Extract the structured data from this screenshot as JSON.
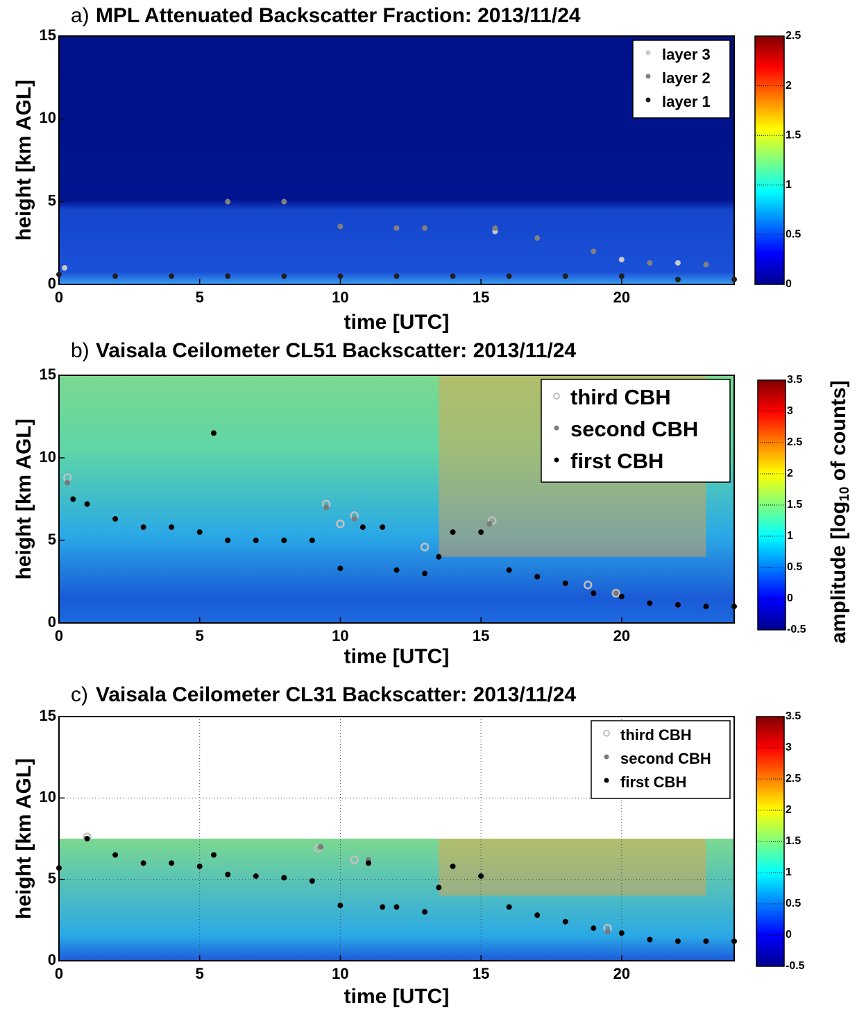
{
  "chart_data": [
    {
      "type": "heatmap",
      "panel": "a)",
      "title": "MPL Attenuated Backscatter Fraction: 2013/11/24",
      "xlabel": "time [UTC]",
      "ylabel": "height [km AGL]",
      "xlim": [
        0,
        24
      ],
      "xticks": [
        0,
        5,
        10,
        15,
        20
      ],
      "ylim": [
        0,
        15
      ],
      "yticks": [
        0,
        5,
        10,
        15
      ],
      "clim": [
        0,
        2.5
      ],
      "cticks": [
        0,
        0.5,
        1,
        1.5,
        2,
        2.5
      ],
      "grid": false,
      "legend": "upper right",
      "series": [
        {
          "name": "layer 3",
          "color": "#c8c8c8",
          "x": [
            0.2,
            15.5,
            20,
            22
          ],
          "values": [
            1,
            3.2,
            1.5,
            1.3
          ]
        },
        {
          "name": "layer 2",
          "color": "#808080",
          "x": [
            6,
            8,
            10,
            12,
            13,
            15.5,
            17,
            19,
            21,
            23
          ],
          "values": [
            5,
            5,
            3.5,
            3.4,
            3.4,
            3.4,
            2.8,
            2,
            1.3,
            1.2
          ]
        },
        {
          "name": "layer 1",
          "color": "#202020",
          "x": [
            0,
            2,
            4,
            6,
            8,
            10,
            12,
            14,
            16,
            18,
            20,
            22,
            24
          ],
          "values": [
            0.6,
            0.5,
            0.5,
            0.5,
            0.5,
            0.5,
            0.5,
            0.5,
            0.5,
            0.5,
            0.5,
            0.3,
            0.3
          ]
        }
      ]
    },
    {
      "type": "heatmap",
      "panel": "b)",
      "title": "Vaisala Ceilometer CL51 Backscatter: 2013/11/24",
      "xlabel": "time [UTC]",
      "ylabel": "height [km AGL]",
      "xlim": [
        0,
        24
      ],
      "xticks": [
        0,
        5,
        10,
        15,
        20
      ],
      "ylim": [
        0,
        15
      ],
      "yticks": [
        0,
        5,
        10,
        15
      ],
      "clim": [
        -0.5,
        3.5
      ],
      "cticks": [
        -0.5,
        0,
        0.5,
        1,
        1.5,
        2,
        2.5,
        3,
        3.5
      ],
      "grid": false,
      "legend": "upper right",
      "colorbar_label": {
        "prefix": "amplitude [log",
        "subscript": "10",
        "suffix": " of counts]"
      },
      "series": [
        {
          "name": "third CBH",
          "color": "#c0c0c0",
          "x": [
            0.3,
            9.5,
            10,
            10.5,
            13,
            15.4,
            18.8,
            19.8
          ],
          "values": [
            8.8,
            7.2,
            6,
            6.5,
            4.6,
            6.2,
            2.3,
            1.8
          ]
        },
        {
          "name": "second CBH",
          "color": "#7a7a7a",
          "x": [
            0.3,
            9.5,
            10.5,
            15.3,
            19.8
          ],
          "values": [
            8.5,
            7,
            6.3,
            6,
            1.8
          ]
        },
        {
          "name": "first CBH",
          "color": "#000000",
          "x": [
            0.5,
            1,
            2,
            3,
            4,
            5,
            5.5,
            6,
            7,
            8,
            9,
            10,
            10.8,
            11.5,
            12,
            13,
            13.5,
            14,
            15,
            16,
            17,
            18,
            19,
            20,
            21,
            22,
            23,
            24
          ],
          "values": [
            7.5,
            7.2,
            6.3,
            5.8,
            5.8,
            5.5,
            11.5,
            5,
            5,
            5,
            5,
            3.3,
            5.8,
            5.8,
            3.2,
            3,
            4,
            5.5,
            5.5,
            3.2,
            2.8,
            2.4,
            1.8,
            1.6,
            1.2,
            1.1,
            1,
            1
          ]
        }
      ]
    },
    {
      "type": "heatmap",
      "panel": "c)",
      "title": "Vaisala Ceilometer CL31 Backscatter: 2013/11/24",
      "xlabel": "time [UTC]",
      "ylabel": "height [km AGL]",
      "xlim": [
        0,
        24
      ],
      "xticks": [
        0,
        5,
        10,
        15,
        20
      ],
      "ylim": [
        0,
        15
      ],
      "yticks": [
        0,
        5,
        10,
        15
      ],
      "clim": [
        -0.5,
        3.5
      ],
      "cticks": [
        -0.5,
        0,
        0.5,
        1,
        1.5,
        2,
        2.5,
        3,
        3.5
      ],
      "grid": true,
      "legend": "upper right",
      "series": [
        {
          "name": "third CBH",
          "color": "#c0c0c0",
          "x": [
            1,
            9.2,
            10.5,
            19.5
          ],
          "values": [
            7.6,
            6.9,
            6.2,
            2
          ]
        },
        {
          "name": "second CBH",
          "color": "#7a7a7a",
          "x": [
            9.3,
            11,
            19.5
          ],
          "values": [
            7,
            6.2,
            1.8
          ]
        },
        {
          "name": "first CBH",
          "color": "#000000",
          "x": [
            0,
            1,
            2,
            3,
            4,
            5,
            5.5,
            6,
            7,
            8,
            9,
            10,
            11,
            11.5,
            12,
            13,
            13.5,
            14,
            15,
            16,
            17,
            18,
            19,
            20,
            21,
            22,
            23,
            24
          ],
          "values": [
            5.7,
            7.5,
            6.5,
            6,
            6,
            5.8,
            6.5,
            5.3,
            5.2,
            5.1,
            4.9,
            3.4,
            6,
            3.3,
            3.3,
            3,
            4.5,
            5.8,
            5.2,
            3.3,
            2.8,
            2.4,
            2,
            1.7,
            1.3,
            1.2,
            1.2,
            1.2
          ]
        }
      ]
    }
  ]
}
